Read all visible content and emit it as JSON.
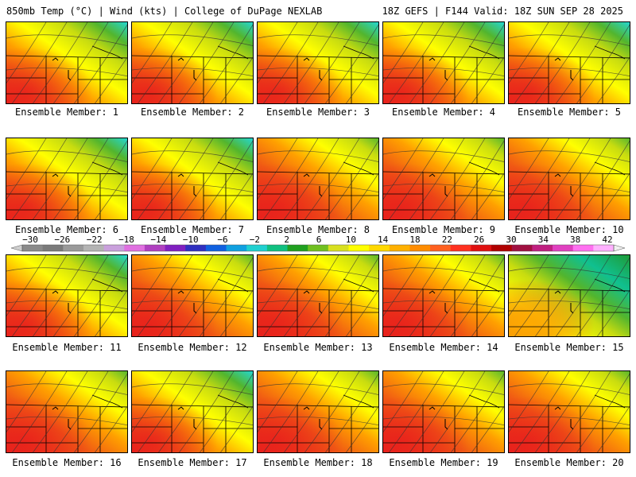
{
  "header": {
    "left": "850mb Temp (°C) | Wind (kts) | College of DuPage NEXLAB",
    "right": "18Z GEFS | F144 Valid: 18Z SUN SEP 28 2025"
  },
  "members": [
    {
      "label": "Ensemble Member: 1",
      "pattern": "warm-sw"
    },
    {
      "label": "Ensemble Member: 2",
      "pattern": "warm-sw"
    },
    {
      "label": "Ensemble Member: 3",
      "pattern": "warm-sw"
    },
    {
      "label": "Ensemble Member: 4",
      "pattern": "warm-sw"
    },
    {
      "label": "Ensemble Member: 5",
      "pattern": "warm-sw"
    },
    {
      "label": "Ensemble Member: 6",
      "pattern": "warm-sw"
    },
    {
      "label": "Ensemble Member: 7",
      "pattern": "warm-sw"
    },
    {
      "label": "Ensemble Member: 8",
      "pattern": "warm-broad"
    },
    {
      "label": "Ensemble Member: 9",
      "pattern": "warm-broad"
    },
    {
      "label": "Ensemble Member: 10",
      "pattern": "warm-broad"
    },
    {
      "label": "Ensemble Member: 11",
      "pattern": "warm-sw"
    },
    {
      "label": "Ensemble Member: 12",
      "pattern": "warm-broad"
    },
    {
      "label": "Ensemble Member: 13",
      "pattern": "warm-broad"
    },
    {
      "label": "Ensemble Member: 14",
      "pattern": "warm-broad"
    },
    {
      "label": "Ensemble Member: 15",
      "pattern": "cool"
    },
    {
      "label": "Ensemble Member: 16",
      "pattern": "warm-broad"
    },
    {
      "label": "Ensemble Member: 17",
      "pattern": "warm-sw"
    },
    {
      "label": "Ensemble Member: 18",
      "pattern": "warm-broad"
    },
    {
      "label": "Ensemble Member: 19",
      "pattern": "warm-broad"
    },
    {
      "label": "Ensemble Member: 20",
      "pattern": "warm-broad"
    }
  ],
  "colorbar": {
    "labels": [
      "−30",
      "−26",
      "−22",
      "−18",
      "−14",
      "−10",
      "−6",
      "−2",
      "2",
      "6",
      "10",
      "14",
      "18",
      "22",
      "26",
      "30",
      "34",
      "38",
      "42"
    ],
    "colors": [
      "#8a8a8a",
      "#7a7a7a",
      "#9a9a9a",
      "#b4b4b4",
      "#c9a0dc",
      "#e070e0",
      "#b040c0",
      "#8020c0",
      "#3030c0",
      "#1060e0",
      "#10a0e0",
      "#20d0d0",
      "#10c080",
      "#20a020",
      "#70c020",
      "#d8e020",
      "#ffff00",
      "#ffd800",
      "#ffb000",
      "#ff8c00",
      "#ff6020",
      "#ff3020",
      "#e01010",
      "#b00000",
      "#a01040",
      "#c02080",
      "#e040c0",
      "#ff70f0",
      "#ffb0ff"
    ]
  },
  "palette": {
    "red": "#e8201c",
    "orange_red": "#f05a14",
    "orange": "#ffa000",
    "yellow_orange": "#ffd200",
    "yellow": "#ffff00",
    "yellow_green": "#c8dc10",
    "green": "#52b52e",
    "dark_green": "#1e9b36",
    "teal": "#10c090",
    "cyan": "#22d8d8"
  }
}
